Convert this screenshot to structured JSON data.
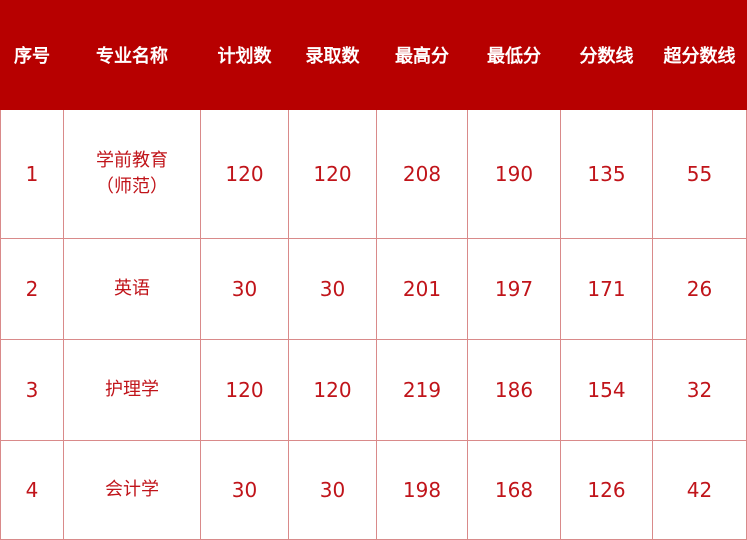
{
  "colors": {
    "header_bg": "#b70000",
    "text": "#c0141a",
    "border": "#d98a8a"
  },
  "headers": [
    "序号",
    "专业名称",
    "计划数",
    "录取数",
    "最高分",
    "最低分",
    "分数线",
    "超分数线"
  ],
  "rows": [
    {
      "no": "1",
      "name": "学前教育",
      "name2": "（师范）",
      "plan": "120",
      "admitted": "120",
      "max": "208",
      "min": "190",
      "line": "135",
      "over": "55"
    },
    {
      "no": "2",
      "name": "英语",
      "plan": "30",
      "admitted": "30",
      "max": "201",
      "min": "197",
      "line": "171",
      "over": "26"
    },
    {
      "no": "3",
      "name": "护理学",
      "plan": "120",
      "admitted": "120",
      "max": "219",
      "min": "186",
      "line": "154",
      "over": "32"
    },
    {
      "no": "4",
      "name": "会计学",
      "plan": "30",
      "admitted": "30",
      "max": "198",
      "min": "168",
      "line": "126",
      "over": "42"
    }
  ]
}
